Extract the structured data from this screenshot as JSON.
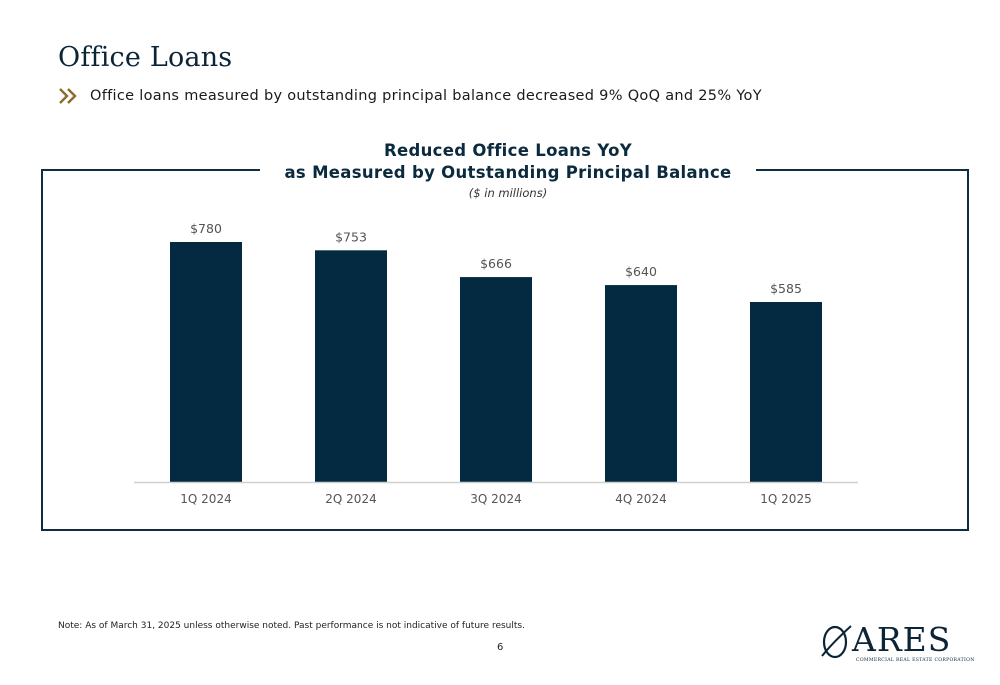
{
  "page": {
    "title": "Office Loans",
    "bullet": "Office loans measured by outstanding principal balance decreased 9% QoQ and 25% YoY",
    "note": "Note: As of March 31, 2025 unless otherwise noted. Past performance is not indicative of future results.",
    "page_number": "6",
    "logo_text": "ARES",
    "logo_subtext": "COMMERCIAL REAL ESTATE CORPORATION"
  },
  "colors": {
    "bar": "#032a40",
    "accent": "#8b6a2e",
    "frame": "#0f2d40"
  },
  "chart_data": {
    "type": "bar",
    "title_line1": "Reduced Office Loans YoY",
    "title_line2": "as Measured by Outstanding Principal Balance",
    "subtitle": "($ in millions)",
    "categories": [
      "1Q 2024",
      "2Q 2024",
      "3Q 2024",
      "4Q 2024",
      "1Q 2025"
    ],
    "values": [
      780,
      753,
      666,
      640,
      585
    ],
    "data_labels": [
      "$780",
      "$753",
      "$666",
      "$640",
      "$585"
    ],
    "ylim": [
      0,
      780
    ],
    "grid": false
  }
}
